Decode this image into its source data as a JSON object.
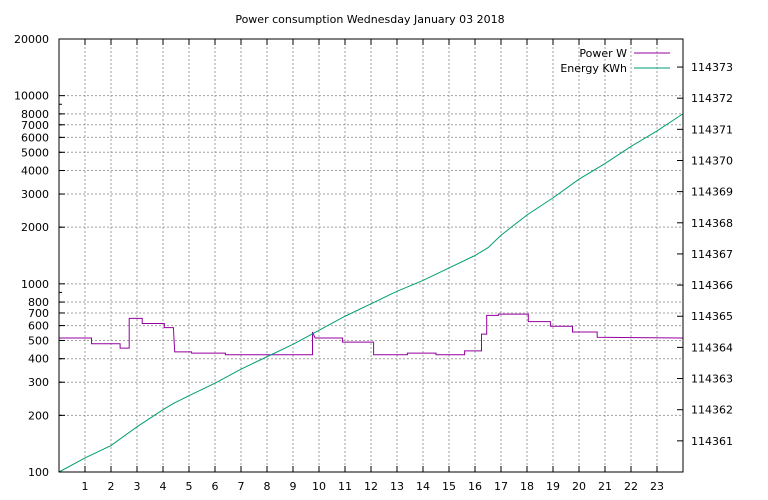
{
  "chart_data": {
    "type": "line",
    "title": "Power consumption Wednesday January 03 2018",
    "xlabel": "",
    "ylabel": "",
    "xlim": [
      0,
      24
    ],
    "x_ticks": [
      1,
      2,
      3,
      4,
      5,
      6,
      7,
      8,
      9,
      10,
      11,
      12,
      13,
      14,
      15,
      16,
      17,
      18,
      19,
      20,
      21,
      22,
      23
    ],
    "y_scale": "log",
    "ylim": [
      100,
      20000
    ],
    "y_ticks": [
      100,
      200,
      300,
      400,
      500,
      600,
      700,
      800,
      1000,
      2000,
      3000,
      4000,
      5000,
      6000,
      7000,
      8000,
      10000,
      20000
    ],
    "y2_scale": "linear",
    "y2lim": [
      114360.0,
      114373.9
    ],
    "y2_ticks": [
      114361,
      114362,
      114363,
      114364,
      114365,
      114366,
      114367,
      114368,
      114369,
      114370,
      114371,
      114372,
      114373
    ],
    "grid": true,
    "legend_position": "top-right",
    "series": [
      {
        "name": "Power W",
        "axis": "left",
        "color": "#94009f",
        "style": "step",
        "points": [
          [
            0.0,
            515
          ],
          [
            1.25,
            515
          ],
          [
            1.25,
            480
          ],
          [
            2.35,
            480
          ],
          [
            2.35,
            455
          ],
          [
            2.7,
            455
          ],
          [
            2.7,
            655
          ],
          [
            3.2,
            655
          ],
          [
            3.2,
            615
          ],
          [
            4.05,
            615
          ],
          [
            4.05,
            585
          ],
          [
            4.4,
            585
          ],
          [
            4.45,
            435
          ],
          [
            5.1,
            435
          ],
          [
            5.1,
            428
          ],
          [
            6.4,
            428
          ],
          [
            6.4,
            420
          ],
          [
            9.75,
            420
          ],
          [
            9.75,
            555
          ],
          [
            9.85,
            515
          ],
          [
            10.9,
            515
          ],
          [
            10.9,
            490
          ],
          [
            12.1,
            490
          ],
          [
            12.1,
            420
          ],
          [
            13.4,
            420
          ],
          [
            13.4,
            428
          ],
          [
            14.5,
            428
          ],
          [
            14.5,
            420
          ],
          [
            15.6,
            420
          ],
          [
            15.6,
            440
          ],
          [
            16.25,
            440
          ],
          [
            16.25,
            540
          ],
          [
            16.45,
            540
          ],
          [
            16.45,
            680
          ],
          [
            16.9,
            680
          ],
          [
            16.9,
            690
          ],
          [
            18.05,
            690
          ],
          [
            18.05,
            630
          ],
          [
            18.9,
            630
          ],
          [
            18.9,
            595
          ],
          [
            19.75,
            595
          ],
          [
            19.75,
            555
          ],
          [
            20.7,
            555
          ],
          [
            20.7,
            520
          ],
          [
            24.0,
            515
          ]
        ]
      },
      {
        "name": "Energy KWh",
        "axis": "right",
        "color": "#009e73",
        "style": "line",
        "points": [
          [
            0.0,
            114360.0
          ],
          [
            1.0,
            114360.45
          ],
          [
            2.0,
            114360.85
          ],
          [
            3.0,
            114361.45
          ],
          [
            4.0,
            114362.0
          ],
          [
            4.4,
            114362.2
          ],
          [
            5.0,
            114362.45
          ],
          [
            6.0,
            114362.85
          ],
          [
            7.0,
            114363.3
          ],
          [
            8.0,
            114363.7
          ],
          [
            9.0,
            114364.1
          ],
          [
            10.0,
            114364.55
          ],
          [
            11.0,
            114365.0
          ],
          [
            12.0,
            114365.4
          ],
          [
            13.0,
            114365.8
          ],
          [
            14.0,
            114366.15
          ],
          [
            15.0,
            114366.55
          ],
          [
            16.0,
            114366.95
          ],
          [
            16.5,
            114367.2
          ],
          [
            17.0,
            114367.6
          ],
          [
            18.0,
            114368.25
          ],
          [
            19.0,
            114368.8
          ],
          [
            20.0,
            114369.4
          ],
          [
            21.0,
            114369.9
          ],
          [
            22.0,
            114370.45
          ],
          [
            23.0,
            114370.95
          ],
          [
            24.0,
            114371.5
          ]
        ]
      }
    ]
  }
}
